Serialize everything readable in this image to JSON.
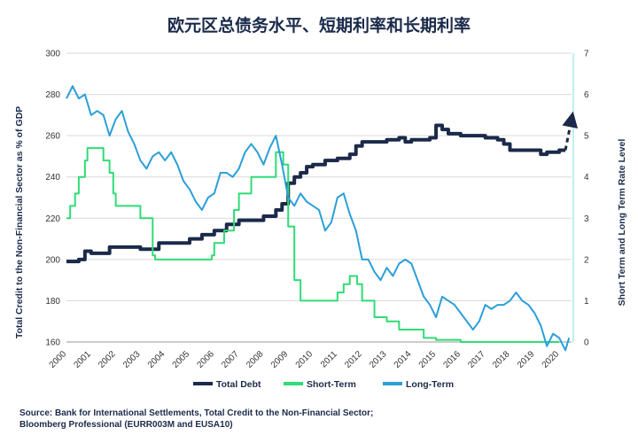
{
  "title": "欧元区总债务水平、短期利率和长期利率",
  "source_line1": "Source: Bank for International Settlements, Total Credit to the Non-Financial Sector;",
  "source_line2": "Bloomberg Professional (EURR003M and EUSA10)",
  "chart_data": {
    "type": "line",
    "ylabel": "Total Credit to the Non-Financial Sector as % of GDP",
    "y2label": "Short Term and Long Term Rate Level",
    "ylim": [
      160,
      300
    ],
    "y2lim": [
      0,
      7
    ],
    "yticks": [
      160,
      180,
      200,
      220,
      240,
      260,
      280,
      300
    ],
    "y2ticks": [
      0,
      1,
      2,
      3,
      4,
      5,
      6,
      7
    ],
    "xlim": [
      2000,
      2020.5
    ],
    "xticks": [
      "2000",
      "2001",
      "2002",
      "2003",
      "2004",
      "2005",
      "2006",
      "2007",
      "2008",
      "2009",
      "2010",
      "2011",
      "2012",
      "2013",
      "2014",
      "2015",
      "2016",
      "2017",
      "2018",
      "2019",
      "2020"
    ],
    "grid": "horizontal",
    "legend": "bottom",
    "colors": {
      "debt": "#1b2a4a",
      "short": "#2fdc75",
      "long": "#2a9fd8",
      "right_axis": "#7fe0d8"
    },
    "series": [
      {
        "name": "Total Debt",
        "axis": "left",
        "color": "#1b2a4a",
        "points": [
          [
            2000,
            199
          ],
          [
            2000.5,
            200
          ],
          [
            2000.75,
            204
          ],
          [
            2001,
            203
          ],
          [
            2001.5,
            203
          ],
          [
            2001.75,
            206
          ],
          [
            2002.5,
            206
          ],
          [
            2003,
            205
          ],
          [
            2003.5,
            205
          ],
          [
            2003.75,
            208
          ],
          [
            2004.5,
            208
          ],
          [
            2005,
            210
          ],
          [
            2005.5,
            212
          ],
          [
            2006,
            214
          ],
          [
            2006.5,
            217
          ],
          [
            2007,
            219
          ],
          [
            2007.5,
            219
          ],
          [
            2008,
            221
          ],
          [
            2008.5,
            224
          ],
          [
            2008.75,
            227
          ],
          [
            2009,
            237
          ],
          [
            2009.25,
            240
          ],
          [
            2009.5,
            242
          ],
          [
            2009.75,
            245
          ],
          [
            2010,
            246
          ],
          [
            2010.5,
            248
          ],
          [
            2011,
            249
          ],
          [
            2011.5,
            251
          ],
          [
            2011.75,
            255
          ],
          [
            2012,
            257
          ],
          [
            2012.5,
            257
          ],
          [
            2013,
            258
          ],
          [
            2013.5,
            259
          ],
          [
            2013.75,
            257
          ],
          [
            2014,
            258
          ],
          [
            2014.5,
            258
          ],
          [
            2014.75,
            259
          ],
          [
            2015,
            265
          ],
          [
            2015.25,
            263
          ],
          [
            2015.5,
            261
          ],
          [
            2016,
            260
          ],
          [
            2016.5,
            260
          ],
          [
            2017,
            259
          ],
          [
            2017.5,
            258
          ],
          [
            2017.75,
            256
          ],
          [
            2018,
            253
          ],
          [
            2018.5,
            253
          ],
          [
            2019,
            253
          ],
          [
            2019.25,
            251
          ],
          [
            2019.5,
            252
          ],
          [
            2020,
            253
          ],
          [
            2020.25,
            253
          ]
        ]
      },
      {
        "name": "",
        "axis": "left",
        "color": "#1b2a4a",
        "style": "dashed-arrow",
        "points": [
          [
            2020.25,
            253
          ],
          [
            2020.5,
            268
          ]
        ]
      },
      {
        "name": "Short-Term",
        "axis": "right",
        "color": "#2fdc75",
        "points": [
          [
            2000,
            3.0
          ],
          [
            2000.15,
            3.3
          ],
          [
            2000.35,
            3.6
          ],
          [
            2000.5,
            4.0
          ],
          [
            2000.75,
            4.4
          ],
          [
            2000.85,
            4.7
          ],
          [
            2001.5,
            4.4
          ],
          [
            2001.75,
            4.1
          ],
          [
            2001.9,
            3.6
          ],
          [
            2002,
            3.3
          ],
          [
            2003,
            3.0
          ],
          [
            2003.5,
            2.1
          ],
          [
            2003.6,
            2.0
          ],
          [
            2004,
            2.0
          ],
          [
            2005,
            2.0
          ],
          [
            2005.9,
            2.1
          ],
          [
            2006,
            2.4
          ],
          [
            2006.4,
            2.7
          ],
          [
            2006.8,
            3.2
          ],
          [
            2007,
            3.6
          ],
          [
            2007.5,
            4.0
          ],
          [
            2008,
            4.0
          ],
          [
            2008.5,
            4.6
          ],
          [
            2008.8,
            4.3
          ],
          [
            2009,
            2.8
          ],
          [
            2009.25,
            1.5
          ],
          [
            2009.5,
            1.0
          ],
          [
            2010,
            1.0
          ],
          [
            2010.5,
            1.0
          ],
          [
            2011,
            1.2
          ],
          [
            2011.25,
            1.4
          ],
          [
            2011.5,
            1.6
          ],
          [
            2011.8,
            1.4
          ],
          [
            2012,
            1.0
          ],
          [
            2012.5,
            0.6
          ],
          [
            2013,
            0.5
          ],
          [
            2013.5,
            0.3
          ],
          [
            2014,
            0.3
          ],
          [
            2014.5,
            0.1
          ],
          [
            2015,
            0.05
          ],
          [
            2016,
            0.0
          ],
          [
            2017,
            0.0
          ],
          [
            2018,
            0.0
          ],
          [
            2019,
            0.0
          ],
          [
            2020,
            0.0
          ]
        ]
      },
      {
        "name": "Long-Term",
        "axis": "right",
        "color": "#2a9fd8",
        "points": [
          [
            2000,
            5.9
          ],
          [
            2000.25,
            6.2
          ],
          [
            2000.5,
            5.9
          ],
          [
            2000.75,
            6.0
          ],
          [
            2001,
            5.5
          ],
          [
            2001.25,
            5.6
          ],
          [
            2001.5,
            5.5
          ],
          [
            2001.75,
            5.0
          ],
          [
            2002,
            5.4
          ],
          [
            2002.25,
            5.6
          ],
          [
            2002.5,
            5.1
          ],
          [
            2002.75,
            4.8
          ],
          [
            2003,
            4.4
          ],
          [
            2003.25,
            4.2
          ],
          [
            2003.5,
            4.5
          ],
          [
            2003.75,
            4.6
          ],
          [
            2004,
            4.4
          ],
          [
            2004.25,
            4.6
          ],
          [
            2004.5,
            4.3
          ],
          [
            2004.75,
            3.9
          ],
          [
            2005,
            3.7
          ],
          [
            2005.25,
            3.4
          ],
          [
            2005.5,
            3.2
          ],
          [
            2005.75,
            3.5
          ],
          [
            2006,
            3.6
          ],
          [
            2006.25,
            4.1
          ],
          [
            2006.5,
            4.1
          ],
          [
            2006.75,
            4.0
          ],
          [
            2007,
            4.2
          ],
          [
            2007.25,
            4.6
          ],
          [
            2007.5,
            4.8
          ],
          [
            2007.75,
            4.6
          ],
          [
            2008,
            4.3
          ],
          [
            2008.25,
            4.7
          ],
          [
            2008.5,
            5.0
          ],
          [
            2008.75,
            4.3
          ],
          [
            2009,
            3.5
          ],
          [
            2009.25,
            3.3
          ],
          [
            2009.5,
            3.6
          ],
          [
            2009.75,
            3.4
          ],
          [
            2010,
            3.3
          ],
          [
            2010.25,
            3.2
          ],
          [
            2010.5,
            2.7
          ],
          [
            2010.75,
            2.9
          ],
          [
            2011,
            3.5
          ],
          [
            2011.25,
            3.6
          ],
          [
            2011.5,
            3.1
          ],
          [
            2011.75,
            2.7
          ],
          [
            2012,
            2.0
          ],
          [
            2012.25,
            2.0
          ],
          [
            2012.5,
            1.7
          ],
          [
            2012.75,
            1.5
          ],
          [
            2013,
            1.8
          ],
          [
            2013.25,
            1.6
          ],
          [
            2013.5,
            1.9
          ],
          [
            2013.75,
            2.0
          ],
          [
            2014,
            1.9
          ],
          [
            2014.25,
            1.5
          ],
          [
            2014.5,
            1.1
          ],
          [
            2014.75,
            0.9
          ],
          [
            2015,
            0.6
          ],
          [
            2015.25,
            1.1
          ],
          [
            2015.5,
            1.0
          ],
          [
            2015.75,
            0.9
          ],
          [
            2016,
            0.7
          ],
          [
            2016.25,
            0.5
          ],
          [
            2016.5,
            0.3
          ],
          [
            2016.75,
            0.5
          ],
          [
            2017,
            0.9
          ],
          [
            2017.25,
            0.8
          ],
          [
            2017.5,
            0.9
          ],
          [
            2017.75,
            0.9
          ],
          [
            2018,
            1.0
          ],
          [
            2018.25,
            1.2
          ],
          [
            2018.5,
            1.0
          ],
          [
            2018.75,
            0.9
          ],
          [
            2019,
            0.7
          ],
          [
            2019.25,
            0.4
          ],
          [
            2019.5,
            -0.1
          ],
          [
            2019.75,
            0.2
          ],
          [
            2020,
            0.1
          ],
          [
            2020.25,
            -0.2
          ],
          [
            2020.4,
            0.1
          ]
        ]
      }
    ]
  }
}
